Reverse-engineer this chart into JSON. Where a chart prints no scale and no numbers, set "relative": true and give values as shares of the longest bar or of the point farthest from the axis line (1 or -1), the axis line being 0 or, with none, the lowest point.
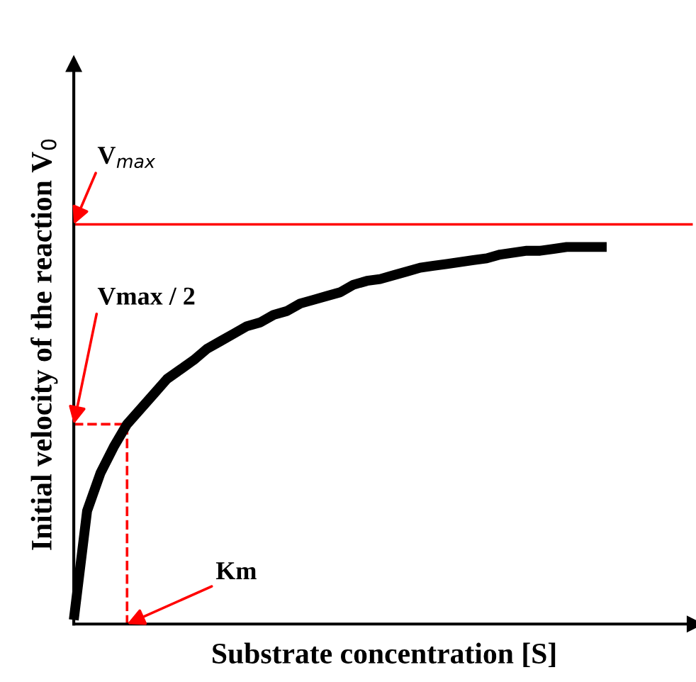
{
  "chart_data": {
    "type": "line",
    "relative": true,
    "xlabel": "Substrate concentration [S]",
    "ylabel": "Initial velocity of the reaction V$_{0}$",
    "categories": [
      null,
      null,
      null,
      null,
      null,
      null,
      null,
      null,
      null,
      null,
      null,
      null,
      null,
      null,
      null,
      null,
      null,
      null,
      null,
      null,
      null,
      null,
      null,
      null,
      null,
      null,
      null,
      null,
      null,
      null,
      null,
      null,
      null,
      null,
      null,
      null,
      null,
      null,
      null,
      null,
      null
    ],
    "series": [
      {
        "color": "#000000",
        "values": [
          0.011,
          0.3,
          0.4,
          0.47,
          0.53,
          0.57,
          0.61,
          0.65,
          0.675,
          0.7,
          0.73,
          0.75,
          0.77,
          0.79,
          0.8,
          0.82,
          0.83,
          0.85,
          0.86,
          0.87,
          0.88,
          0.9,
          0.91,
          0.915,
          0.925,
          0.935,
          0.945,
          0.95,
          0.955,
          0.96,
          0.965,
          0.97,
          0.98,
          0.985,
          0.99,
          0.99,
          0.995,
          1.0,
          1.0,
          1.0,
          1.0
        ]
      }
    ],
    "ref_lines": [
      {
        "axis": "y",
        "value": 1.06,
        "color": "#ff0000"
      }
    ],
    "annotations": [
      {
        "text": "V$_{max}$",
        "y": 1.06
      },
      "Vmax / 2",
      "Km"
    ],
    "grid": false,
    "legend": false,
    "marker": "none",
    "line_style": "solid"
  }
}
